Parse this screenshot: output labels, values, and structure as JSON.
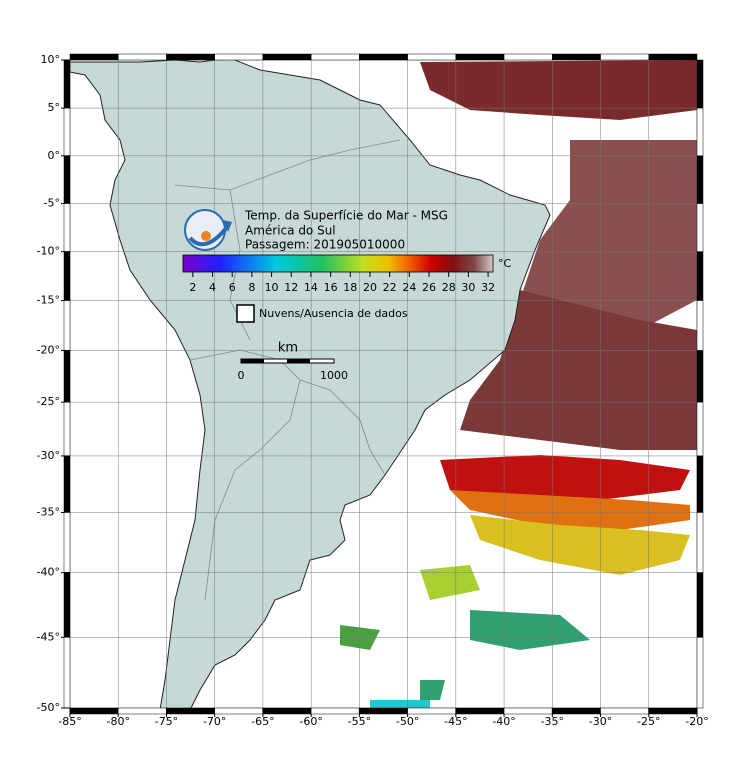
{
  "map": {
    "title_lines": [
      "Temp. da Superfície do Mar - MSG",
      "América do Sul",
      "Passagem: 201905010000"
    ],
    "colorbar": {
      "unit": "°C",
      "lim": [
        1,
        32.5
      ],
      "ticks": [
        2,
        4,
        6,
        8,
        10,
        12,
        14,
        16,
        18,
        20,
        22,
        24,
        26,
        28,
        30,
        32
      ]
    },
    "legend": "Nuvens/Ausencia de dados",
    "scale": {
      "unit": "km",
      "labels": [
        0,
        1000
      ]
    },
    "xlim": [
      -85,
      -20
    ],
    "ylim": [
      -50,
      10
    ],
    "xticks": [
      {
        "value": -85,
        "label": "-85°"
      },
      {
        "value": -80,
        "label": "-80°"
      },
      {
        "value": -75,
        "label": "-75°"
      },
      {
        "value": -70,
        "label": "-70°"
      },
      {
        "value": -65,
        "label": "-65°"
      },
      {
        "value": -60,
        "label": "-60°"
      },
      {
        "value": -55,
        "label": "-55°"
      },
      {
        "value": -50,
        "label": "-50°"
      },
      {
        "value": -45,
        "label": "-45°"
      },
      {
        "value": -40,
        "label": "-40°"
      },
      {
        "value": -35,
        "label": "-35°"
      },
      {
        "value": -30,
        "label": "-30°"
      },
      {
        "value": -25,
        "label": "-25°"
      },
      {
        "value": -20,
        "label": "-20°"
      }
    ],
    "yticks": [
      {
        "value": 10,
        "label": "10°"
      },
      {
        "value": 5,
        "label": "5°"
      },
      {
        "value": 0,
        "label": "0°"
      },
      {
        "value": -5,
        "label": "-5°"
      },
      {
        "value": -10,
        "label": "-10°"
      },
      {
        "value": -15,
        "label": "-15°"
      },
      {
        "value": -20,
        "label": "-20°"
      },
      {
        "value": -25,
        "label": "-25°"
      },
      {
        "value": -30,
        "label": "-30°"
      },
      {
        "value": -35,
        "label": "-35°"
      },
      {
        "value": -40,
        "label": "-40°"
      },
      {
        "value": -45,
        "label": "-45°"
      },
      {
        "value": -50,
        "label": "-50°"
      }
    ]
  }
}
